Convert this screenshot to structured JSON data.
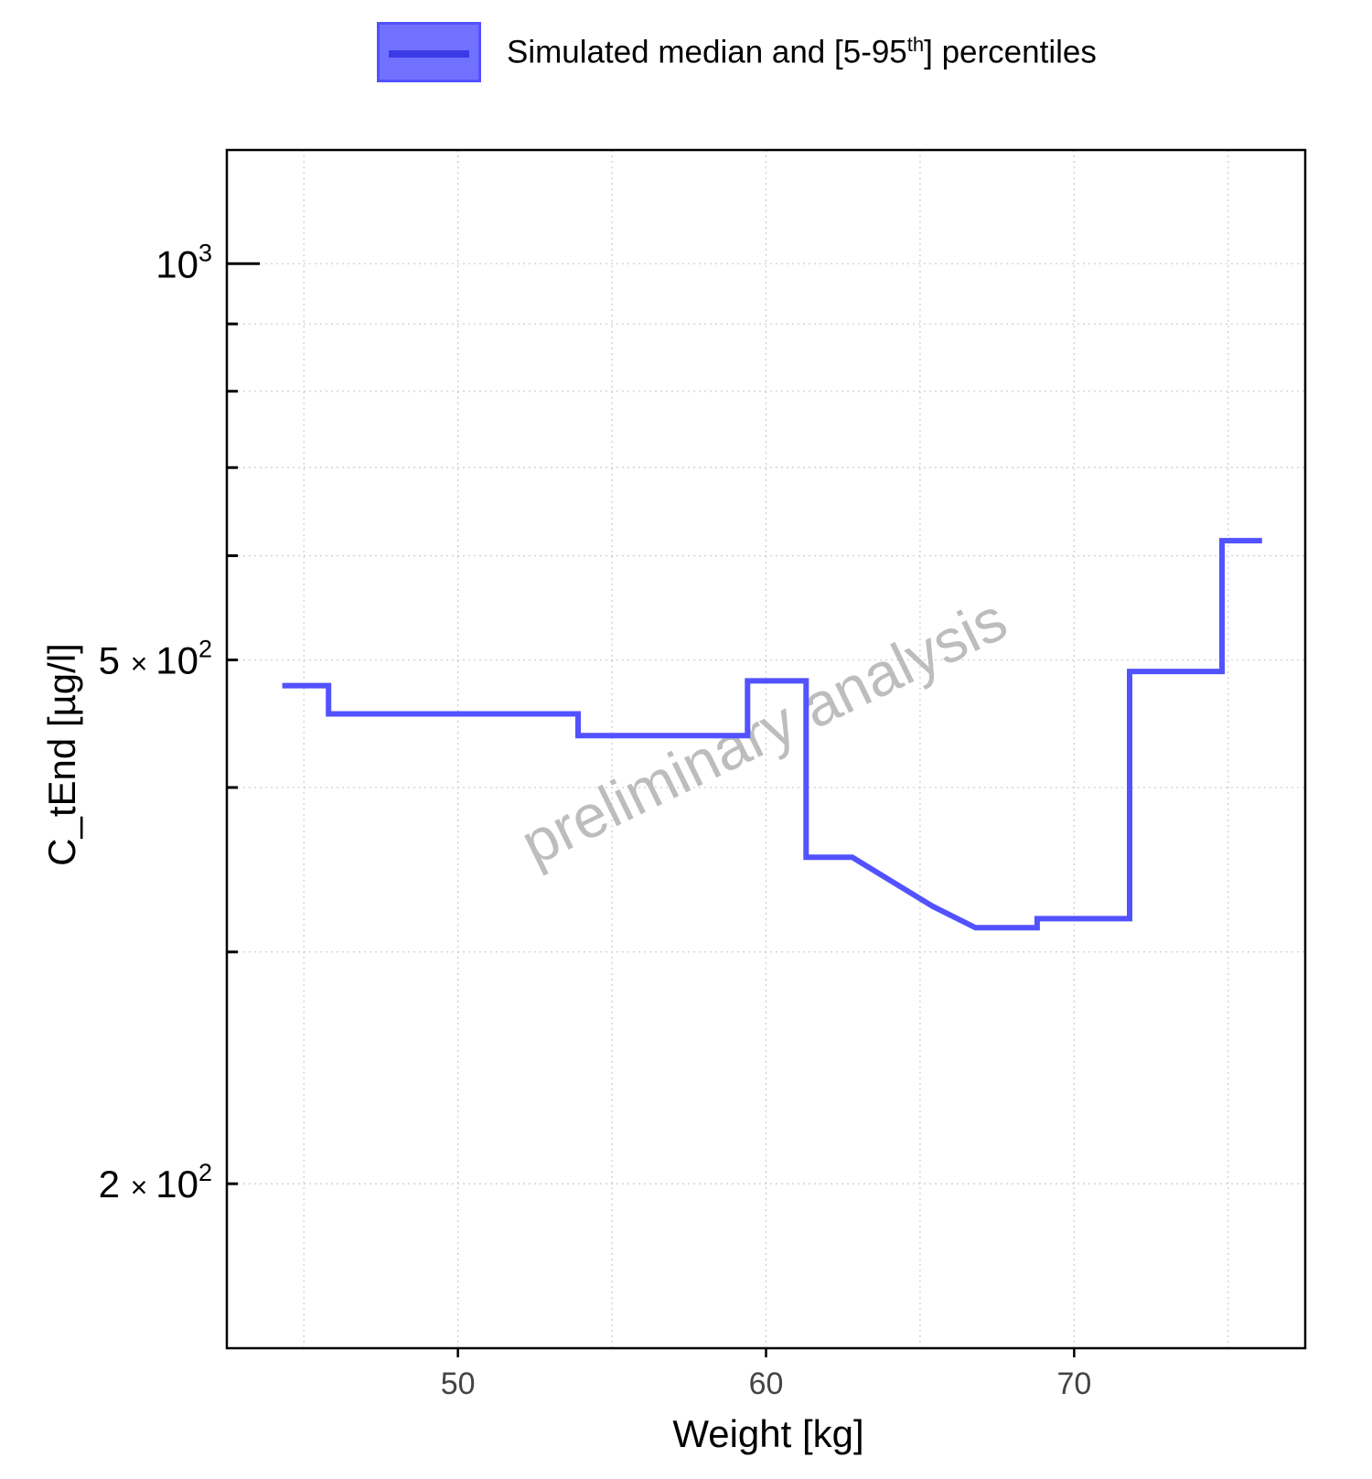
{
  "legend": {
    "label_main": "Simulated median and [5-95",
    "label_sup": "th",
    "label_end": "] percentiles",
    "color": "#5252ff"
  },
  "chart_data": {
    "type": "line",
    "step": true,
    "scale_y": "log",
    "xlabel": "Weight [kg]",
    "ylabel": "C_tEnd [µg/l]",
    "xlim": [
      42.5,
      77.5
    ],
    "ylim": [
      150,
      1220
    ],
    "x_ticks": [
      50,
      60,
      70
    ],
    "y_ticks": [
      {
        "value": 200,
        "mant": "2",
        "times": "×",
        "base": "10",
        "exp": "2"
      },
      {
        "value": 500,
        "mant": "5",
        "times": "×",
        "base": "10",
        "exp": "2"
      },
      {
        "value": 1000,
        "mant": "",
        "times": "",
        "base": "10",
        "exp": "3"
      }
    ],
    "grid": true,
    "watermark": "preliminary analysis",
    "series": [
      {
        "name": "Simulated median and [5-95th] percentiles",
        "color": "#5252ff",
        "x": [
          44.3,
          45.8,
          45.8,
          53.9,
          53.9,
          59.4,
          59.4,
          61.3,
          61.3,
          62.8,
          65.4,
          65.4,
          66.8,
          66.8,
          68.8,
          68.8,
          71.8,
          71.8,
          74.8,
          74.8,
          76.1
        ],
        "y": [
          478,
          478,
          455,
          455,
          438,
          438,
          482,
          482,
          354,
          354,
          325,
          325,
          313,
          313,
          313,
          318,
          318,
          490,
          490,
          616,
          616
        ]
      }
    ]
  }
}
